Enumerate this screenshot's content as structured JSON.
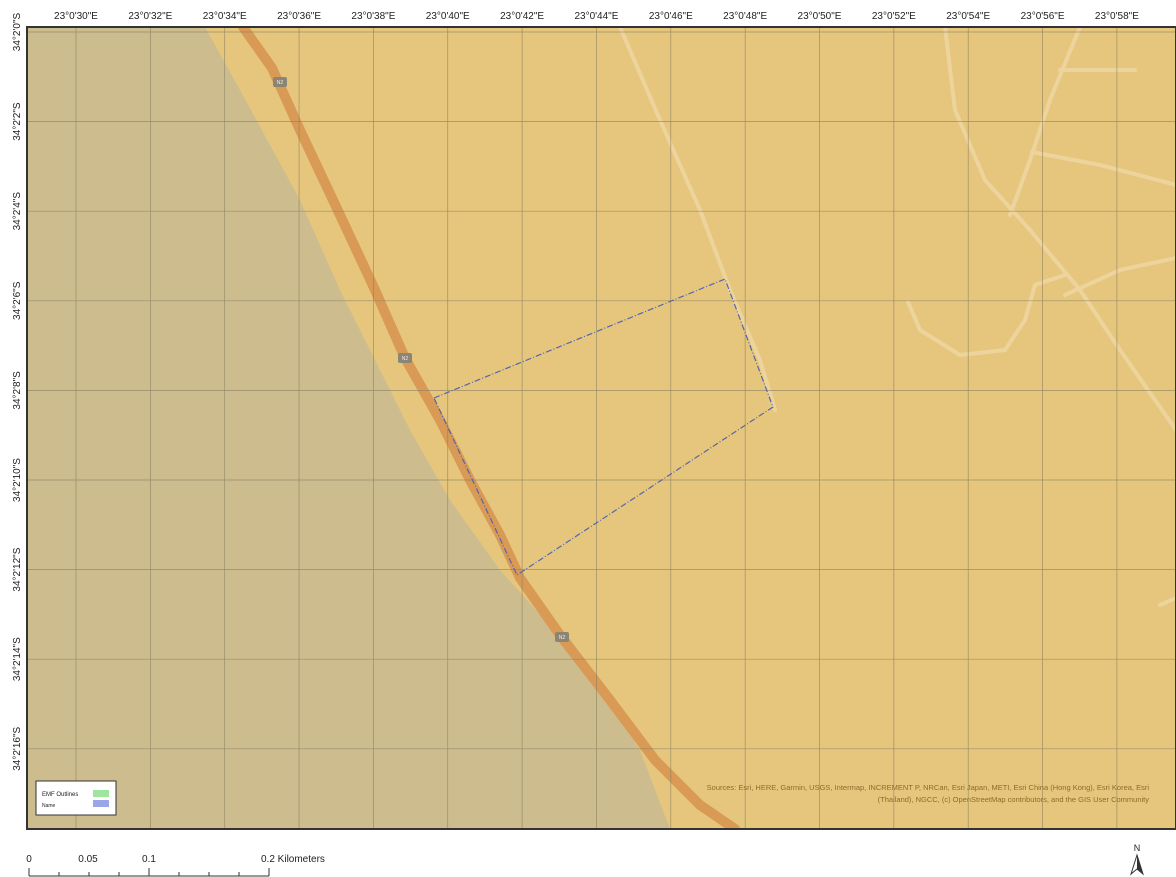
{
  "map": {
    "top_ticks": [
      "23°0'30\"E",
      "23°0'32\"E",
      "23°0'34\"E",
      "23°0'36\"E",
      "23°0'38\"E",
      "23°0'40\"E",
      "23°0'42\"E",
      "23°0'44\"E",
      "23°0'46\"E",
      "23°0'48\"E",
      "23°0'50\"E",
      "23°0'52\"E",
      "23°0'54\"E",
      "23°0'56\"E",
      "23°0'58\"E"
    ],
    "left_ticks": [
      "34°2'0\"S",
      "34°2'2\"S",
      "34°2'4\"S",
      "34°2'6\"S",
      "34°2'8\"S",
      "34°2'10\"S",
      "34°2'12\"S",
      "34°2'14\"S",
      "34°2'16\"S"
    ],
    "road_label": "N2",
    "colors": {
      "land": "#e6c67d",
      "water": "#cdbd8e",
      "road": "#d89a55",
      "minor_road": "#edd49c",
      "outline": "#5566aa",
      "grid": "#8a8060"
    }
  },
  "attribution": {
    "line1": "Sources: Esri, HERE, Garmin, USGS, Intermap, INCREMENT P, NRCan, Esri Japan, METI, Esri China (Hong Kong), Esri Korea, Esri",
    "line2": "(Thailand), NGCC, (c) OpenStreetMap contributors, and the GIS User Community"
  },
  "legend": {
    "title": "EMF Outlines",
    "sub": "Name",
    "swatch_top_color": "#9ee6a0",
    "swatch_bottom_color": "#9aa6e8"
  },
  "scale_bar": {
    "labels": [
      "0",
      "0.05",
      "0.1",
      "0.2 Kilometers"
    ]
  },
  "north_arrow": {
    "label": "N"
  }
}
